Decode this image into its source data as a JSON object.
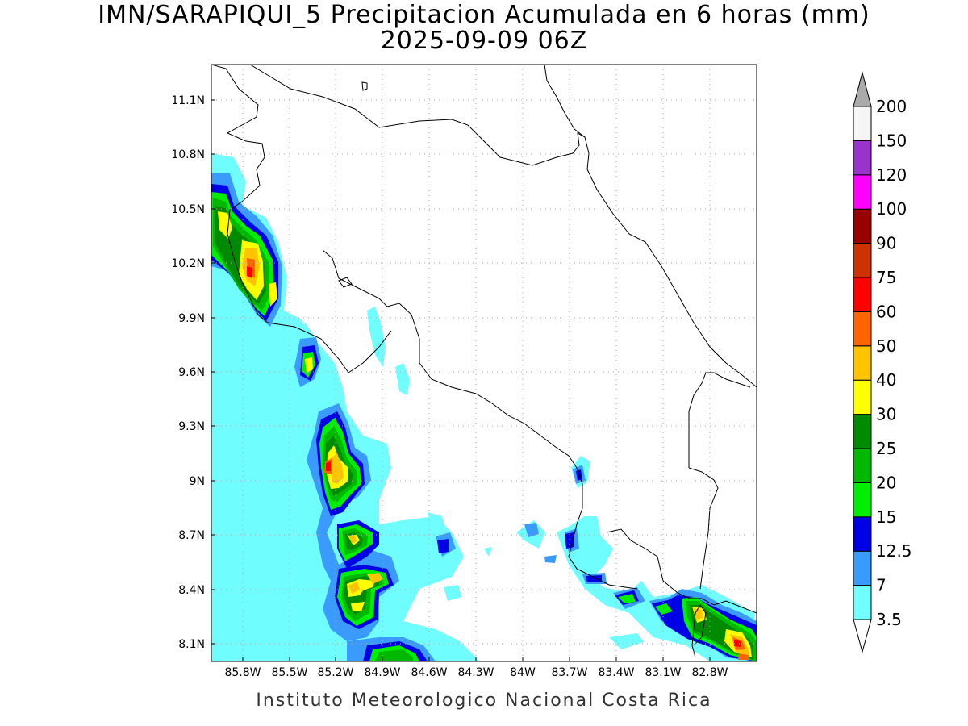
{
  "title": {
    "line1": "IMN/SARAPIQUI_5 Precipitacion Acumulada en 6 horas (mm)",
    "line2": "2025-09-09 06Z"
  },
  "footer": "Instituto Meteorologico Nacional Costa Rica",
  "axes": {
    "lon_ticks": [
      "85.8W",
      "85.5W",
      "85.2W",
      "84.9W",
      "84.6W",
      "84.3W",
      "84W",
      "83.7W",
      "83.4W",
      "83.1W",
      "82.8W"
    ],
    "lat_ticks": [
      "11.1N",
      "10.8N",
      "10.5N",
      "10.2N",
      "9.9N",
      "9.6N",
      "9.3N",
      "9N",
      "8.7N",
      "8.4N",
      "8.1N"
    ],
    "lon_values": [
      -85.8,
      -85.5,
      -85.2,
      -84.9,
      -84.6,
      -84.3,
      -84.0,
      -83.7,
      -83.4,
      -83.1,
      -82.8
    ],
    "lat_values": [
      11.1,
      10.8,
      10.5,
      10.2,
      9.9,
      9.6,
      9.3,
      9.0,
      8.7,
      8.4,
      8.1
    ],
    "lon_range": [
      -86.0,
      -82.5
    ],
    "lat_range": [
      8.0,
      11.25
    ],
    "grid": "dotted"
  },
  "colorbar": {
    "levels": [
      "3.5",
      "7",
      "12.5",
      "15",
      "20",
      "25",
      "30",
      "40",
      "50",
      "60",
      "75",
      "90",
      "100",
      "120",
      "150",
      "200"
    ],
    "colors": [
      "#6ffdfd",
      "#3a9bfd",
      "#0000e6",
      "#00ef00",
      "#00b800",
      "#008a00",
      "#ffff00",
      "#ffc400",
      "#ff6400",
      "#ff0000",
      "#cc3300",
      "#990000",
      "#ff00ff",
      "#9933cc",
      "#f5f5f5",
      "#aaaaaa"
    ],
    "extend_low_color": "#ffffff",
    "extend_high_color": "#aaaaaa"
  }
}
